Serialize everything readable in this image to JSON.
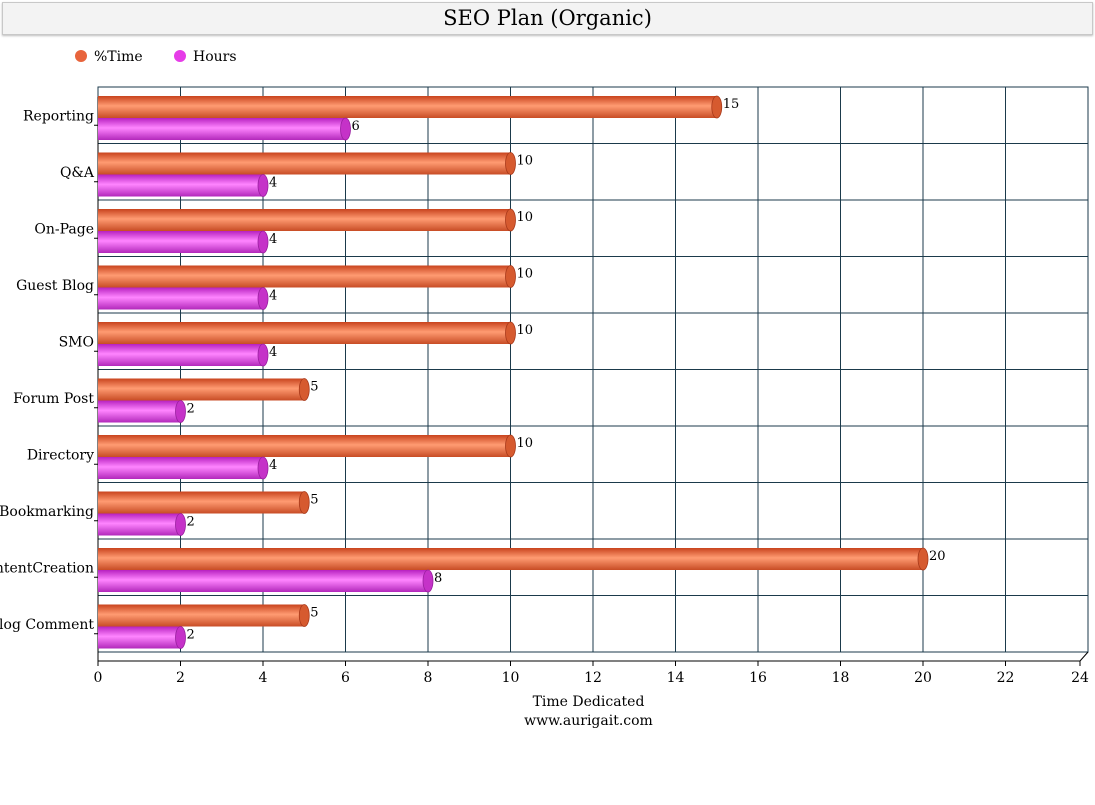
{
  "chart_data": {
    "type": "bar",
    "orientation": "horizontal",
    "title": "SEO Plan (Organic)",
    "xlabel": "Time Dedicated",
    "footer": "www.aurigait.com",
    "categories": [
      "Reporting",
      "Q&A",
      "On-Page",
      "Guest Blog",
      "SMO",
      "Forum Post",
      "Directory",
      "Bookmarking",
      "ContentCreation",
      "Blog Comment"
    ],
    "series": [
      {
        "name": "%Time",
        "values": [
          15,
          10,
          10,
          10,
          10,
          5,
          10,
          5,
          20,
          5
        ],
        "color": "#e8643c"
      },
      {
        "name": "Hours",
        "values": [
          6,
          4,
          4,
          4,
          4,
          2,
          4,
          2,
          8,
          2
        ],
        "color": "#e63ce8"
      }
    ],
    "xlim": [
      0,
      24
    ],
    "xticks": [
      0,
      2,
      4,
      6,
      8,
      10,
      12,
      14,
      16,
      18,
      20,
      22,
      24
    ],
    "grid": true,
    "legend_position": "top-left",
    "data_labels": true
  }
}
